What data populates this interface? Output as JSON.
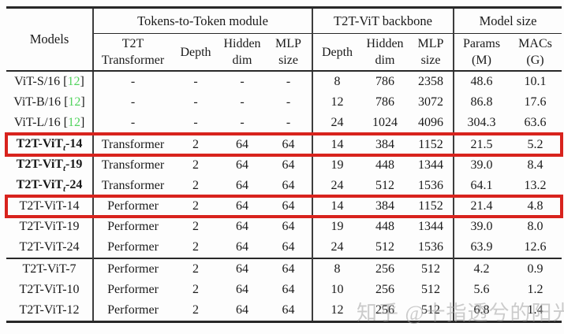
{
  "colors": {
    "rule": "#282828",
    "highlight_box": "#d8231d",
    "citation_green": "#52d35e",
    "watermark_gray": "#a3a3a3"
  },
  "cite_brackets": [
    "[",
    "]"
  ],
  "table": {
    "header": {
      "models_label": "Models",
      "group1": "Tokens-to-Token module",
      "group2": "T2T-ViT backbone",
      "group3": "Model size",
      "sub": {
        "t2t_transformer_l1": "T2T",
        "t2t_transformer_l2": "Transformer",
        "t2t_depth": "Depth",
        "t2t_hidden_l1": "Hidden",
        "t2t_hidden_l2": "dim",
        "t2t_mlp_l1": "MLP",
        "t2t_mlp_l2": "size",
        "bb_depth": "Depth",
        "bb_hidden_l1": "Hidden",
        "bb_hidden_l2": "dim",
        "bb_mlp_l1": "MLP",
        "bb_mlp_l2": "size",
        "params_l1": "Params",
        "params_l2": "(M)",
        "macs_l1": "MACs",
        "macs_l2": "(G)"
      }
    },
    "rows": [
      {
        "model": {
          "pre": "ViT-S/16 ",
          "sub": "",
          "post": "",
          "cite": "12"
        },
        "cells": [
          "-",
          "-",
          "-",
          "-",
          "8",
          "786",
          "2358",
          "48.6",
          "10.1"
        ],
        "bold": false,
        "highlight": false,
        "group_start": false
      },
      {
        "model": {
          "pre": "ViT-B/16 ",
          "sub": "",
          "post": "",
          "cite": "12"
        },
        "cells": [
          "-",
          "-",
          "-",
          "-",
          "12",
          "786",
          "3072",
          "86.8",
          "17.6"
        ],
        "bold": false,
        "highlight": false,
        "group_start": false
      },
      {
        "model": {
          "pre": "ViT-L/16 ",
          "sub": "",
          "post": "",
          "cite": "12"
        },
        "cells": [
          "-",
          "-",
          "-",
          "-",
          "24",
          "1024",
          "4096",
          "304.3",
          "63.6"
        ],
        "bold": false,
        "highlight": false,
        "group_start": false
      },
      {
        "model": {
          "pre": "T2T-ViT",
          "sub": "t",
          "post": "-14",
          "cite": ""
        },
        "cells": [
          "Transformer",
          "2",
          "64",
          "64",
          "14",
          "384",
          "1152",
          "21.5",
          "5.2"
        ],
        "bold": true,
        "highlight": true,
        "group_start": true
      },
      {
        "model": {
          "pre": "T2T-ViT",
          "sub": "t",
          "post": "-19",
          "cite": ""
        },
        "cells": [
          "Transformer",
          "2",
          "64",
          "64",
          "19",
          "448",
          "1344",
          "39.0",
          "8.4"
        ],
        "bold": true,
        "highlight": false,
        "group_start": false
      },
      {
        "model": {
          "pre": "T2T-ViT",
          "sub": "t",
          "post": "-24",
          "cite": ""
        },
        "cells": [
          "Transformer",
          "2",
          "64",
          "64",
          "24",
          "512",
          "1536",
          "64.1",
          "13.2"
        ],
        "bold": true,
        "highlight": false,
        "group_start": false
      },
      {
        "model": {
          "pre": "T2T-ViT-14",
          "sub": "",
          "post": "",
          "cite": ""
        },
        "cells": [
          "Performer",
          "2",
          "64",
          "64",
          "14",
          "384",
          "1152",
          "21.4",
          "4.8"
        ],
        "bold": false,
        "highlight": true,
        "group_start": false
      },
      {
        "model": {
          "pre": "T2T-ViT-19",
          "sub": "",
          "post": "",
          "cite": ""
        },
        "cells": [
          "Performer",
          "2",
          "64",
          "64",
          "19",
          "448",
          "1344",
          "39.0",
          "8.0"
        ],
        "bold": false,
        "highlight": false,
        "group_start": false
      },
      {
        "model": {
          "pre": "T2T-ViT-24",
          "sub": "",
          "post": "",
          "cite": ""
        },
        "cells": [
          "Performer",
          "2",
          "64",
          "64",
          "24",
          "512",
          "1536",
          "63.9",
          "12.6"
        ],
        "bold": false,
        "highlight": false,
        "group_start": false
      },
      {
        "model": {
          "pre": "T2T-ViT-7",
          "sub": "",
          "post": "",
          "cite": ""
        },
        "cells": [
          "Performer",
          "2",
          "64",
          "64",
          "8",
          "256",
          "512",
          "4.2",
          "0.9"
        ],
        "bold": false,
        "highlight": false,
        "group_start": true
      },
      {
        "model": {
          "pre": "T2T-ViT-10",
          "sub": "",
          "post": "",
          "cite": ""
        },
        "cells": [
          "Performer",
          "2",
          "64",
          "64",
          "10",
          "256",
          "512",
          "5.6",
          "1.2"
        ],
        "bold": false,
        "highlight": false,
        "group_start": false
      },
      {
        "model": {
          "pre": "T2T-ViT-12",
          "sub": "",
          "post": "",
          "cite": ""
        },
        "cells": [
          "Performer",
          "2",
          "64",
          "64",
          "12",
          "256",
          "512",
          "6.8",
          "1.4"
        ],
        "bold": false,
        "highlight": false,
        "group_start": false
      }
    ]
  },
  "watermark": {
    "text": "知乎 @十指透兮的阳光"
  }
}
